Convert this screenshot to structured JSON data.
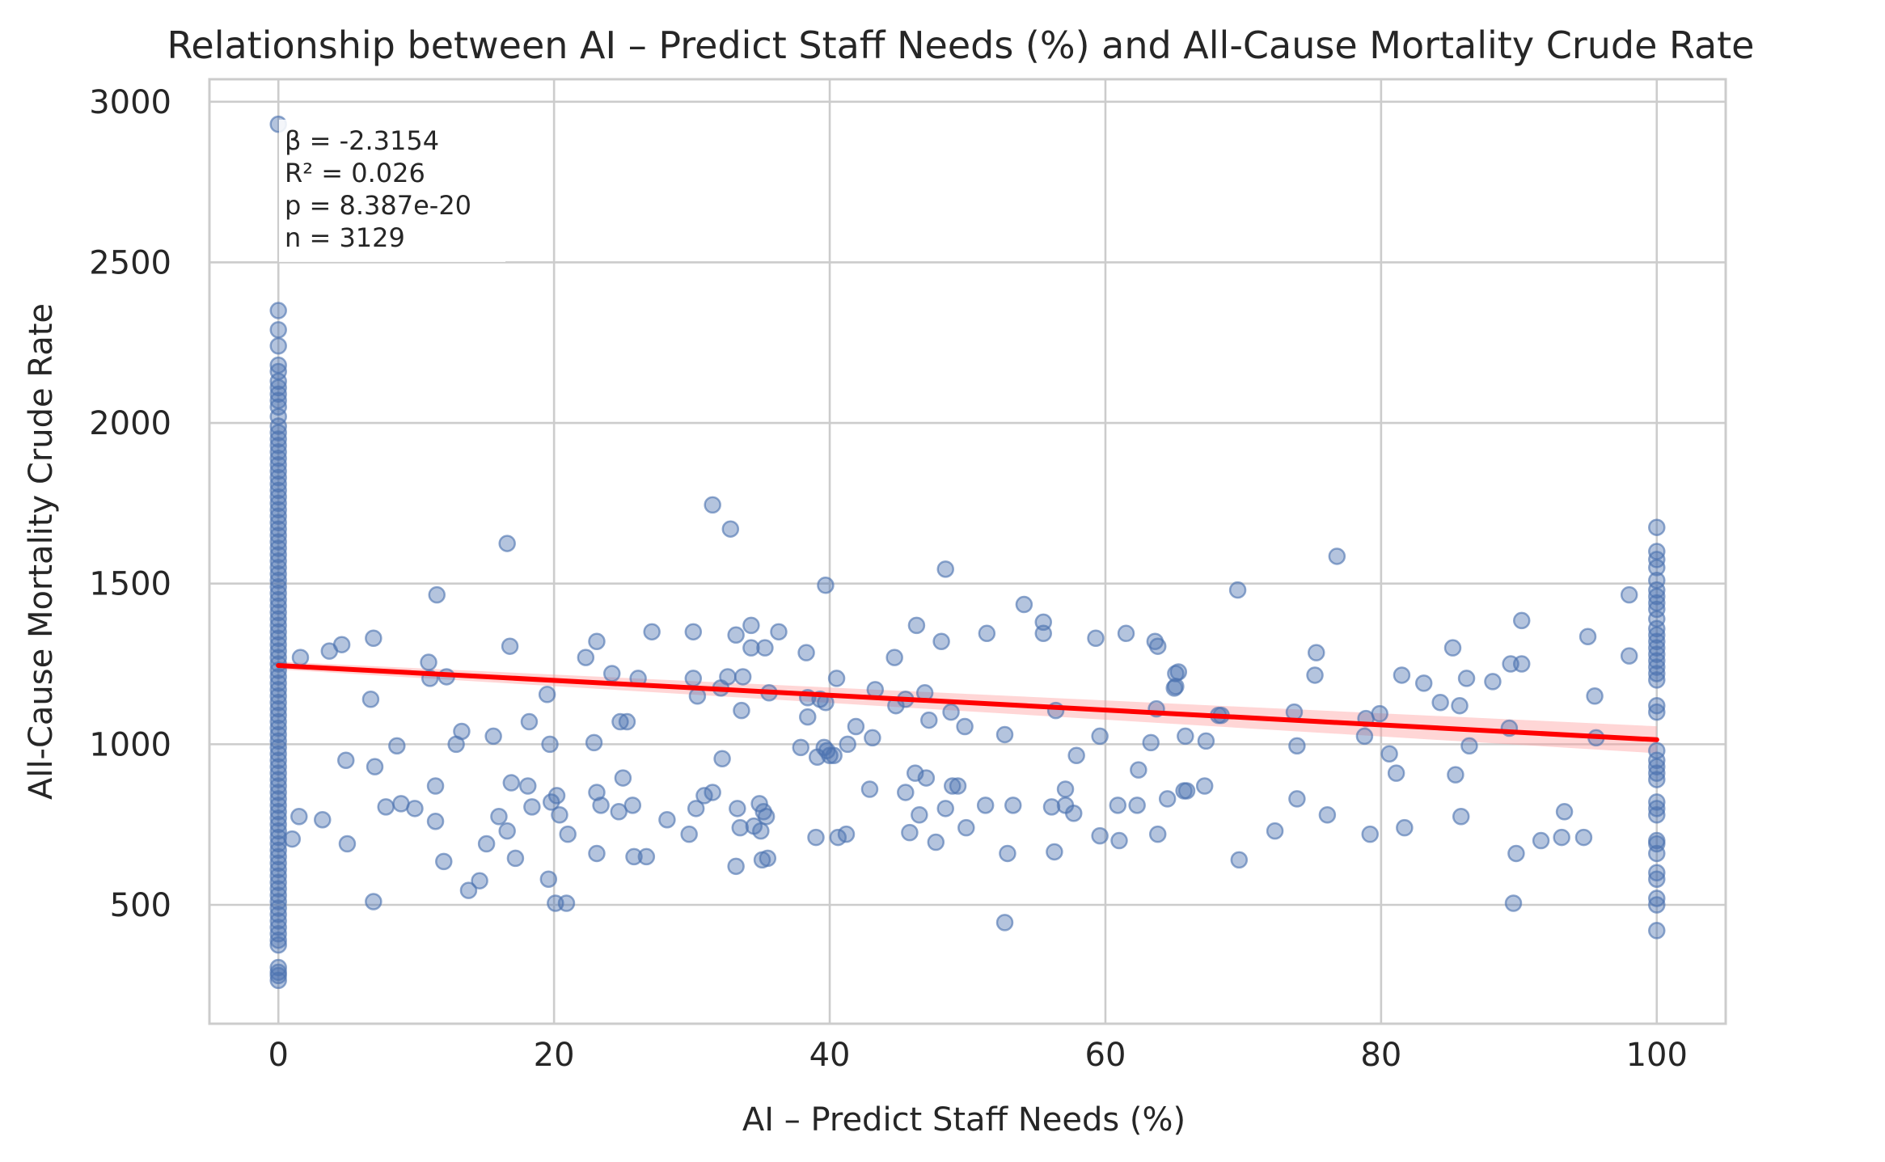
{
  "chart_data": {
    "type": "scatter",
    "title": "Relationship between AI – Predict Staff Needs (%) and All-Cause Mortality Crude Rate",
    "xlabel": "AI – Predict Staff Needs (%)",
    "ylabel": "All-Cause Mortality Crude Rate",
    "xlim": [
      -5,
      105
    ],
    "ylim": [
      130,
      3070
    ],
    "xticks": [
      0,
      20,
      40,
      60,
      80,
      100
    ],
    "yticks": [
      500,
      1000,
      1500,
      2000,
      2500,
      3000
    ],
    "grid": true,
    "colors": {
      "points": "#4c72b0",
      "regression": "#ff0000",
      "confidence_band": "#ff9999"
    },
    "stats": [
      "β = -2.3154",
      "R² = 0.026",
      "p = 8.387e-20",
      "n = 3129"
    ],
    "regression": {
      "x": [
        0,
        100
      ],
      "y": [
        1245,
        1014
      ],
      "ci_halfwidth": [
        12,
        42
      ]
    },
    "points": [
      [
        0,
        2930
      ],
      [
        0,
        2350
      ],
      [
        0,
        2290
      ],
      [
        0,
        2240
      ],
      [
        0,
        2180
      ],
      [
        0,
        2160
      ],
      [
        0,
        2130
      ],
      [
        0,
        2110
      ],
      [
        0,
        2090
      ],
      [
        0,
        2070
      ],
      [
        0,
        2050
      ],
      [
        0,
        2020
      ],
      [
        0,
        1990
      ],
      [
        0,
        1970
      ],
      [
        0,
        1950
      ],
      [
        0,
        1930
      ],
      [
        0,
        1910
      ],
      [
        0,
        1890
      ],
      [
        0,
        1870
      ],
      [
        0,
        1850
      ],
      [
        0,
        1830
      ],
      [
        0,
        1810
      ],
      [
        0,
        1790
      ],
      [
        0,
        1770
      ],
      [
        0,
        1750
      ],
      [
        0,
        1730
      ],
      [
        0,
        1710
      ],
      [
        0,
        1690
      ],
      [
        0,
        1670
      ],
      [
        0,
        1650
      ],
      [
        0,
        1630
      ],
      [
        0,
        1610
      ],
      [
        0,
        1590
      ],
      [
        0,
        1570
      ],
      [
        0,
        1550
      ],
      [
        0,
        1530
      ],
      [
        0,
        1510
      ],
      [
        0,
        1490
      ],
      [
        0,
        1470
      ],
      [
        0,
        1450
      ],
      [
        0,
        1430
      ],
      [
        0,
        1410
      ],
      [
        0,
        1390
      ],
      [
        0,
        1370
      ],
      [
        0,
        1350
      ],
      [
        0,
        1330
      ],
      [
        0,
        1310
      ],
      [
        0,
        1290
      ],
      [
        0,
        1270
      ],
      [
        0,
        1250
      ],
      [
        0,
        1230
      ],
      [
        0,
        1210
      ],
      [
        0,
        1190
      ],
      [
        0,
        1170
      ],
      [
        0,
        1150
      ],
      [
        0,
        1130
      ],
      [
        0,
        1110
      ],
      [
        0,
        1090
      ],
      [
        0,
        1070
      ],
      [
        0,
        1050
      ],
      [
        0,
        1030
      ],
      [
        0,
        1010
      ],
      [
        0,
        990
      ],
      [
        0,
        970
      ],
      [
        0,
        950
      ],
      [
        0,
        930
      ],
      [
        0,
        910
      ],
      [
        0,
        890
      ],
      [
        0,
        870
      ],
      [
        0,
        850
      ],
      [
        0,
        830
      ],
      [
        0,
        810
      ],
      [
        0,
        790
      ],
      [
        0,
        770
      ],
      [
        0,
        750
      ],
      [
        0,
        730
      ],
      [
        0,
        710
      ],
      [
        0,
        690
      ],
      [
        0,
        670
      ],
      [
        0,
        650
      ],
      [
        0,
        630
      ],
      [
        0,
        610
      ],
      [
        0,
        590
      ],
      [
        0,
        570
      ],
      [
        0,
        550
      ],
      [
        0,
        530
      ],
      [
        0,
        510
      ],
      [
        0,
        490
      ],
      [
        0,
        470
      ],
      [
        0,
        450
      ],
      [
        0,
        430
      ],
      [
        0,
        410
      ],
      [
        0,
        390
      ],
      [
        0,
        375
      ],
      [
        0,
        305
      ],
      [
        0,
        290
      ],
      [
        0,
        280
      ],
      [
        0,
        265
      ],
      [
        100,
        1675
      ],
      [
        100,
        1600
      ],
      [
        100,
        1575
      ],
      [
        100,
        1550
      ],
      [
        100,
        1510
      ],
      [
        100,
        1480
      ],
      [
        100,
        1460
      ],
      [
        100,
        1440
      ],
      [
        100,
        1420
      ],
      [
        100,
        1390
      ],
      [
        100,
        1360
      ],
      [
        100,
        1340
      ],
      [
        100,
        1320
      ],
      [
        100,
        1300
      ],
      [
        100,
        1280
      ],
      [
        100,
        1260
      ],
      [
        100,
        1240
      ],
      [
        100,
        1220
      ],
      [
        100,
        1200
      ],
      [
        100,
        1120
      ],
      [
        100,
        1100
      ],
      [
        100,
        980
      ],
      [
        100,
        950
      ],
      [
        100,
        930
      ],
      [
        100,
        910
      ],
      [
        100,
        890
      ],
      [
        100,
        820
      ],
      [
        100,
        800
      ],
      [
        100,
        780
      ],
      [
        100,
        700
      ],
      [
        100,
        690
      ],
      [
        100,
        660
      ],
      [
        100,
        600
      ],
      [
        100,
        580
      ],
      [
        100,
        520
      ],
      [
        100,
        500
      ],
      [
        100,
        420
      ],
      [
        31.5,
        1745
      ],
      [
        32.8,
        1670
      ],
      [
        16.6,
        1625
      ],
      [
        76.8,
        1585
      ],
      [
        48.4,
        1545
      ],
      [
        39.7,
        1495
      ],
      [
        69.6,
        1480
      ],
      [
        11.5,
        1465
      ],
      [
        98,
        1465
      ],
      [
        54.1,
        1435
      ],
      [
        90.2,
        1385
      ],
      [
        55.5,
        1380
      ],
      [
        34.3,
        1370
      ],
      [
        46.3,
        1370
      ],
      [
        27.1,
        1350
      ],
      [
        30.1,
        1350
      ],
      [
        36.3,
        1350
      ],
      [
        51.4,
        1345
      ],
      [
        61.5,
        1345
      ],
      [
        55.5,
        1345
      ],
      [
        33.2,
        1340
      ],
      [
        95,
        1335
      ],
      [
        59.3,
        1330
      ],
      [
        6.9,
        1330
      ],
      [
        23.1,
        1320
      ],
      [
        48.1,
        1320
      ],
      [
        63.6,
        1320
      ],
      [
        4.6,
        1310
      ],
      [
        16.8,
        1305
      ],
      [
        63.8,
        1305
      ],
      [
        34.3,
        1300
      ],
      [
        35.3,
        1300
      ],
      [
        85.2,
        1300
      ],
      [
        3.7,
        1290
      ],
      [
        38.3,
        1285
      ],
      [
        75.3,
        1285
      ],
      [
        1.6,
        1270
      ],
      [
        22.3,
        1270
      ],
      [
        44.7,
        1270
      ],
      [
        98,
        1275
      ],
      [
        89.4,
        1250
      ],
      [
        90.2,
        1250
      ],
      [
        10.9,
        1255
      ],
      [
        65.3,
        1225
      ],
      [
        65.1,
        1220
      ],
      [
        33.7,
        1210
      ],
      [
        32.6,
        1210
      ],
      [
        12.2,
        1210
      ],
      [
        11,
        1205
      ],
      [
        30.1,
        1205
      ],
      [
        40.5,
        1205
      ],
      [
        81.5,
        1215
      ],
      [
        75.2,
        1215
      ],
      [
        86.2,
        1205
      ],
      [
        26.1,
        1205
      ],
      [
        24.2,
        1220
      ],
      [
        83.1,
        1190
      ],
      [
        88.1,
        1195
      ],
      [
        65.1,
        1180
      ],
      [
        65,
        1175
      ],
      [
        43.3,
        1170
      ],
      [
        46.9,
        1160
      ],
      [
        32.1,
        1175
      ],
      [
        35.6,
        1160
      ],
      [
        19.5,
        1155
      ],
      [
        30.4,
        1150
      ],
      [
        95.5,
        1150
      ],
      [
        6.7,
        1140
      ],
      [
        45.5,
        1140
      ],
      [
        38.4,
        1145
      ],
      [
        84.3,
        1130
      ],
      [
        39.3,
        1140
      ],
      [
        39.7,
        1130
      ],
      [
        85.7,
        1120
      ],
      [
        44.8,
        1120
      ],
      [
        63.7,
        1110
      ],
      [
        33.6,
        1105
      ],
      [
        48.8,
        1100
      ],
      [
        56.4,
        1105
      ],
      [
        73.7,
        1100
      ],
      [
        79.9,
        1095
      ],
      [
        68.2,
        1090
      ],
      [
        78.9,
        1080
      ],
      [
        68.4,
        1090
      ],
      [
        24.8,
        1070
      ],
      [
        25.3,
        1070
      ],
      [
        18.2,
        1070
      ],
      [
        47.2,
        1075
      ],
      [
        38.4,
        1085
      ],
      [
        13.3,
        1040
      ],
      [
        41.9,
        1055
      ],
      [
        49.8,
        1055
      ],
      [
        52.7,
        1030
      ],
      [
        59.6,
        1025
      ],
      [
        65.8,
        1025
      ],
      [
        78.8,
        1025
      ],
      [
        15.6,
        1025
      ],
      [
        89.3,
        1050
      ],
      [
        95.6,
        1020
      ],
      [
        43.1,
        1020
      ],
      [
        67.3,
        1010
      ],
      [
        63.3,
        1005
      ],
      [
        73.9,
        995
      ],
      [
        86.4,
        995
      ],
      [
        40,
        965
      ],
      [
        37.9,
        990
      ],
      [
        41.3,
        1000
      ],
      [
        39.6,
        990
      ],
      [
        22.9,
        1005
      ],
      [
        19.7,
        1000
      ],
      [
        8.6,
        995
      ],
      [
        12.9,
        1000
      ],
      [
        81.1,
        910
      ],
      [
        80.6,
        970
      ],
      [
        57.9,
        965
      ],
      [
        39.8,
        980
      ],
      [
        39.1,
        960
      ],
      [
        40.3,
        965
      ],
      [
        4.9,
        950
      ],
      [
        7,
        930
      ],
      [
        32.2,
        955
      ],
      [
        62.4,
        920
      ],
      [
        23.1,
        850
      ],
      [
        20.2,
        840
      ],
      [
        42.9,
        860
      ],
      [
        57.1,
        860
      ],
      [
        67.2,
        870
      ],
      [
        49.3,
        870
      ],
      [
        48.9,
        870
      ],
      [
        11.4,
        870
      ],
      [
        16.9,
        880
      ],
      [
        18.1,
        870
      ],
      [
        30.9,
        840
      ],
      [
        31.5,
        850
      ],
      [
        46.2,
        910
      ],
      [
        47,
        895
      ],
      [
        25,
        895
      ],
      [
        45.5,
        850
      ],
      [
        48.4,
        800
      ],
      [
        65.7,
        855
      ],
      [
        34.9,
        815
      ],
      [
        85.4,
        905
      ],
      [
        64.5,
        830
      ],
      [
        73.9,
        830
      ],
      [
        8.9,
        815
      ],
      [
        9.9,
        800
      ],
      [
        7.8,
        805
      ],
      [
        11.4,
        760
      ],
      [
        16,
        775
      ],
      [
        25.7,
        810
      ],
      [
        24.7,
        790
      ],
      [
        23.4,
        810
      ],
      [
        19.8,
        820
      ],
      [
        18.4,
        805
      ],
      [
        35.2,
        790
      ],
      [
        33.3,
        800
      ],
      [
        33.5,
        740
      ],
      [
        34.5,
        745
      ],
      [
        35,
        730
      ],
      [
        35.4,
        775
      ],
      [
        30.3,
        800
      ],
      [
        28.2,
        765
      ],
      [
        20.4,
        780
      ],
      [
        45.8,
        725
      ],
      [
        46.5,
        780
      ],
      [
        51.3,
        810
      ],
      [
        53.3,
        810
      ],
      [
        56.1,
        805
      ],
      [
        57.1,
        810
      ],
      [
        57.7,
        785
      ],
      [
        62.3,
        810
      ],
      [
        60.9,
        810
      ],
      [
        76.1,
        780
      ],
      [
        79.2,
        720
      ],
      [
        81.7,
        740
      ],
      [
        85.8,
        775
      ],
      [
        93.3,
        790
      ],
      [
        93.1,
        710
      ],
      [
        94.7,
        710
      ],
      [
        91.6,
        700
      ],
      [
        72.3,
        730
      ],
      [
        69.7,
        640
      ],
      [
        89.8,
        660
      ],
      [
        52.9,
        660
      ],
      [
        56.3,
        665
      ],
      [
        41.2,
        720
      ],
      [
        40.6,
        710
      ],
      [
        39,
        710
      ],
      [
        29.8,
        720
      ],
      [
        25.8,
        650
      ],
      [
        26.7,
        650
      ],
      [
        23.1,
        660
      ],
      [
        17.2,
        645
      ],
      [
        13.8,
        545
      ],
      [
        14.6,
        575
      ],
      [
        12,
        635
      ],
      [
        15.1,
        690
      ],
      [
        5,
        690
      ],
      [
        1,
        705
      ],
      [
        3.2,
        765
      ],
      [
        1.5,
        775
      ],
      [
        16.6,
        730
      ],
      [
        21,
        720
      ],
      [
        33.2,
        620
      ],
      [
        35.1,
        640
      ],
      [
        35.5,
        645
      ],
      [
        47.7,
        695
      ],
      [
        49.9,
        740
      ],
      [
        59.6,
        715
      ],
      [
        61,
        700
      ],
      [
        63.8,
        720
      ],
      [
        65.9,
        855
      ],
      [
        19.6,
        580
      ],
      [
        20.1,
        505
      ],
      [
        20.9,
        505
      ],
      [
        6.9,
        510
      ],
      [
        52.7,
        445
      ],
      [
        89.6,
        505
      ]
    ]
  }
}
